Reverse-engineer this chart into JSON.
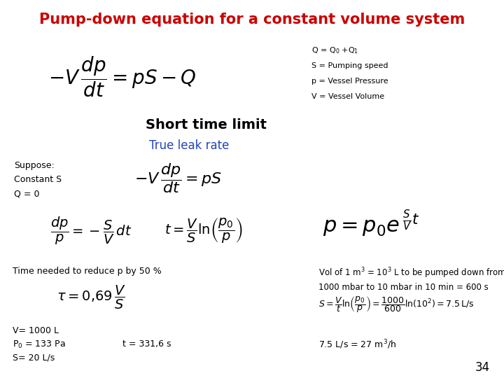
{
  "title": "Pump-down equation for a constant volume system",
  "title_color": "#CC0000",
  "bg_color": "#FFFFFF",
  "short_time_label": "Short time limit",
  "true_leak_label": "True leak rate",
  "page_number": "34",
  "legend_lines": [
    "Q = Q$_0$ +Q$_1$",
    "S = Pumping speed",
    "p = Vessel Pressure",
    "V = Vessel Volume"
  ]
}
